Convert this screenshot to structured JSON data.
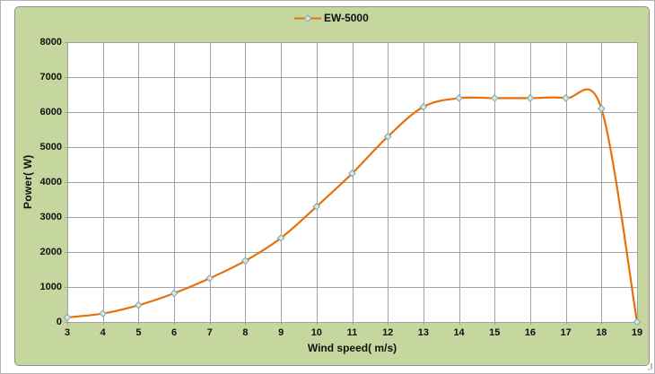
{
  "chart_data": {
    "type": "line",
    "title": "",
    "categories": [
      3,
      4,
      5,
      6,
      7,
      8,
      9,
      10,
      11,
      12,
      13,
      14,
      15,
      16,
      17,
      18,
      19
    ],
    "series": [
      {
        "name": "EW-5000",
        "values": [
          130,
          240,
          480,
          820,
          1250,
          1750,
          2400,
          3300,
          4250,
          5300,
          6150,
          6400,
          6400,
          6400,
          6400,
          6100,
          0
        ]
      }
    ],
    "xlabel": "Wind speed( m/s)",
    "ylabel": "Power( W)",
    "xlim": [
      3,
      19
    ],
    "ylim": [
      0,
      8000
    ],
    "y_ticks": [
      0,
      1000,
      2000,
      3000,
      4000,
      5000,
      6000,
      7000,
      8000
    ],
    "grid": true,
    "legend_position": "top-center",
    "marker": "diamond",
    "colors": {
      "line": "#e8700a",
      "marker_fill": "#dfeacb",
      "marker_stroke": "#7fa8c9",
      "chart_background": "#c5d79e",
      "plot_background": "#ffffff",
      "gridline": "#a3a3a3",
      "text": "#111111"
    }
  }
}
